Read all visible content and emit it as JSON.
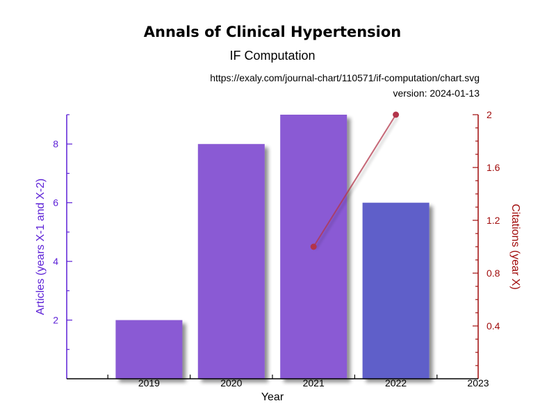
{
  "chart_data": {
    "type": "bar",
    "title": "Annals of Clinical Hypertension",
    "subtitle": "IF Computation",
    "url": "https://exaly.com/journal-chart/110571/if-computation/chart.svg",
    "version": "version: 2024-01-13",
    "xlabel": "Year",
    "ylabel_left": "Articles (years X-1 and X-2)",
    "ylabel_right": "Citations (year X)",
    "x_ticks": [
      "2019",
      "2020",
      "2021",
      "2022",
      "2023"
    ],
    "left_ticks": [
      "2",
      "4",
      "6",
      "8"
    ],
    "right_ticks": [
      "0.4",
      "0.8",
      "1.2",
      "1.6",
      "2"
    ],
    "ylim_left": [
      0,
      9
    ],
    "ylim_right": [
      0,
      2
    ],
    "bars": {
      "name": "Articles",
      "categories": [
        "2019",
        "2020",
        "2021",
        "2022"
      ],
      "values": [
        2,
        8,
        9,
        6
      ],
      "colors": [
        "#8a5ad4",
        "#8a5ad4",
        "#8a5ad4",
        "#5e5ec9"
      ]
    },
    "line": {
      "name": "Citations",
      "x": [
        "2021",
        "2022"
      ],
      "values": [
        1,
        2
      ],
      "color": "#b3344a"
    }
  }
}
